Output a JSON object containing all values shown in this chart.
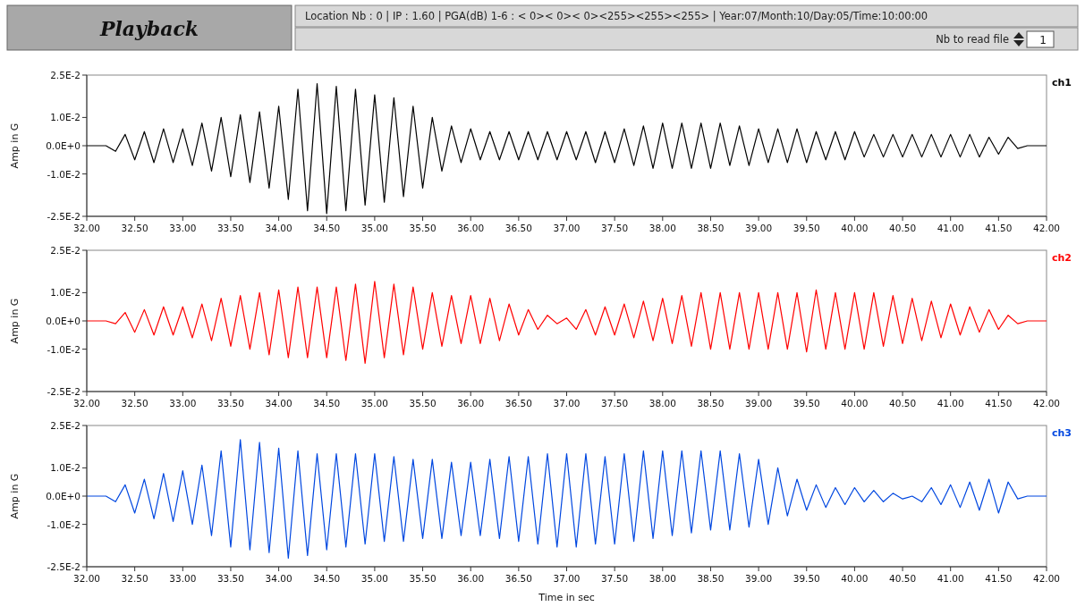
{
  "chart_data": [
    {
      "type": "other",
      "title": "Playback",
      "annotations": [
        "Location Nb : 0  |  IP : 1.60  |  PGA(dB) 1-6 : < 0>< 0>< 0><255><255><255>  |  Year:07/Month:10/Day:05/Time:10:00:00",
        "Nb to read file",
        "1"
      ]
    },
    {
      "type": "line",
      "ylabel": "Amp in G",
      "xlim": [
        32,
        42
      ],
      "ylim": [
        -0.025,
        0.025
      ],
      "xticks": [
        {
          "value": 32,
          "label": "32.00"
        },
        {
          "value": 32.5,
          "label": "32.50"
        },
        {
          "value": 33,
          "label": "33.00"
        },
        {
          "value": 33.5,
          "label": "33.50"
        },
        {
          "value": 34,
          "label": "34.00"
        },
        {
          "value": 34.5,
          "label": "34.50"
        },
        {
          "value": 35,
          "label": "35.00"
        },
        {
          "value": 35.5,
          "label": "35.50"
        },
        {
          "value": 36,
          "label": "36.00"
        },
        {
          "value": 36.5,
          "label": "36.50"
        },
        {
          "value": 37,
          "label": "37.00"
        },
        {
          "value": 37.5,
          "label": "37.50"
        },
        {
          "value": 38,
          "label": "38.00"
        },
        {
          "value": 38.5,
          "label": "38.50"
        },
        {
          "value": 39,
          "label": "39.00"
        },
        {
          "value": 39.5,
          "label": "39.50"
        },
        {
          "value": 40,
          "label": "40.00"
        },
        {
          "value": 40.5,
          "label": "40.50"
        },
        {
          "value": 41,
          "label": "41.00"
        },
        {
          "value": 41.5,
          "label": "41.50"
        },
        {
          "value": 42,
          "label": "42.00"
        }
      ],
      "yticks": [
        {
          "value": 0.025,
          "label": "2.5E-2"
        },
        {
          "value": 0.01,
          "label": "1.0E-2"
        },
        {
          "value": 0,
          "label": "0.0E+0"
        },
        {
          "value": -0.01,
          "label": "-1.0E-2"
        },
        {
          "value": -0.025,
          "label": "-2.5E-2"
        }
      ],
      "x": [
        32,
        32.1,
        32.2,
        32.3,
        32.4,
        32.5,
        32.6,
        32.7,
        32.8,
        32.9,
        33,
        33.1,
        33.2,
        33.3,
        33.4,
        33.5,
        33.6,
        33.7,
        33.8,
        33.9,
        34,
        34.1,
        34.2,
        34.3,
        34.4,
        34.5,
        34.6,
        34.7,
        34.8,
        34.9,
        35,
        35.1,
        35.2,
        35.3,
        35.4,
        35.5,
        35.6,
        35.7,
        35.8,
        35.9,
        36,
        36.1,
        36.2,
        36.3,
        36.4,
        36.5,
        36.6,
        36.7,
        36.8,
        36.9,
        37,
        37.1,
        37.2,
        37.3,
        37.4,
        37.5,
        37.6,
        37.7,
        37.8,
        37.9,
        38,
        38.1,
        38.2,
        38.3,
        38.4,
        38.5,
        38.6,
        38.7,
        38.8,
        38.9,
        39,
        39.1,
        39.2,
        39.3,
        39.4,
        39.5,
        39.6,
        39.7,
        39.8,
        39.9,
        40,
        40.1,
        40.2,
        40.3,
        40.4,
        40.5,
        40.6,
        40.7,
        40.8,
        40.9,
        41,
        41.1,
        41.2,
        41.3,
        41.4,
        41.5,
        41.6,
        41.7,
        41.8,
        41.9,
        42
      ],
      "series": [
        {
          "name": "ch1",
          "color": "#000000",
          "values": [
            0,
            0,
            0,
            -0.002,
            0.004,
            -0.005,
            0.005,
            -0.006,
            0.006,
            -0.006,
            0.006,
            -0.007,
            0.008,
            -0.009,
            0.01,
            -0.011,
            0.011,
            -0.013,
            0.012,
            -0.015,
            0.014,
            -0.019,
            0.02,
            -0.023,
            0.022,
            -0.024,
            0.021,
            -0.023,
            0.02,
            -0.021,
            0.018,
            -0.02,
            0.017,
            -0.018,
            0.014,
            -0.015,
            0.01,
            -0.009,
            0.007,
            -0.006,
            0.006,
            -0.005,
            0.005,
            -0.005,
            0.005,
            -0.005,
            0.005,
            -0.005,
            0.005,
            -0.005,
            0.005,
            -0.005,
            0.005,
            -0.006,
            0.005,
            -0.006,
            0.006,
            -0.007,
            0.007,
            -0.008,
            0.008,
            -0.008,
            0.008,
            -0.008,
            0.008,
            -0.008,
            0.008,
            -0.007,
            0.007,
            -0.007,
            0.006,
            -0.006,
            0.006,
            -0.006,
            0.006,
            -0.006,
            0.005,
            -0.005,
            0.005,
            -0.005,
            0.005,
            -0.004,
            0.004,
            -0.004,
            0.004,
            -0.004,
            0.004,
            -0.004,
            0.004,
            -0.004,
            0.004,
            -0.004,
            0.004,
            -0.004,
            0.003,
            -0.003,
            0.003,
            -0.001,
            0,
            0,
            0
          ]
        }
      ]
    },
    {
      "type": "line",
      "ylabel": "Amp in G",
      "xlim": [
        32,
        42
      ],
      "ylim": [
        -0.025,
        0.025
      ],
      "xticks": [
        {
          "value": 32,
          "label": "32.00"
        },
        {
          "value": 32.5,
          "label": "32.50"
        },
        {
          "value": 33,
          "label": "33.00"
        },
        {
          "value": 33.5,
          "label": "33.50"
        },
        {
          "value": 34,
          "label": "34.00"
        },
        {
          "value": 34.5,
          "label": "34.50"
        },
        {
          "value": 35,
          "label": "35.00"
        },
        {
          "value": 35.5,
          "label": "35.50"
        },
        {
          "value": 36,
          "label": "36.00"
        },
        {
          "value": 36.5,
          "label": "36.50"
        },
        {
          "value": 37,
          "label": "37.00"
        },
        {
          "value": 37.5,
          "label": "37.50"
        },
        {
          "value": 38,
          "label": "38.00"
        },
        {
          "value": 38.5,
          "label": "38.50"
        },
        {
          "value": 39,
          "label": "39.00"
        },
        {
          "value": 39.5,
          "label": "39.50"
        },
        {
          "value": 40,
          "label": "40.00"
        },
        {
          "value": 40.5,
          "label": "40.50"
        },
        {
          "value": 41,
          "label": "41.00"
        },
        {
          "value": 41.5,
          "label": "41.50"
        },
        {
          "value": 42,
          "label": "42.00"
        }
      ],
      "yticks": [
        {
          "value": 0.025,
          "label": "2.5E-2"
        },
        {
          "value": 0.01,
          "label": "1.0E-2"
        },
        {
          "value": 0,
          "label": "0.0E+0"
        },
        {
          "value": -0.01,
          "label": "-1.0E-2"
        },
        {
          "value": -0.025,
          "label": "-2.5E-2"
        }
      ],
      "x": [
        32,
        32.1,
        32.2,
        32.3,
        32.4,
        32.5,
        32.6,
        32.7,
        32.8,
        32.9,
        33,
        33.1,
        33.2,
        33.3,
        33.4,
        33.5,
        33.6,
        33.7,
        33.8,
        33.9,
        34,
        34.1,
        34.2,
        34.3,
        34.4,
        34.5,
        34.6,
        34.7,
        34.8,
        34.9,
        35,
        35.1,
        35.2,
        35.3,
        35.4,
        35.5,
        35.6,
        35.7,
        35.8,
        35.9,
        36,
        36.1,
        36.2,
        36.3,
        36.4,
        36.5,
        36.6,
        36.7,
        36.8,
        36.9,
        37,
        37.1,
        37.2,
        37.3,
        37.4,
        37.5,
        37.6,
        37.7,
        37.8,
        37.9,
        38,
        38.1,
        38.2,
        38.3,
        38.4,
        38.5,
        38.6,
        38.7,
        38.8,
        38.9,
        39,
        39.1,
        39.2,
        39.3,
        39.4,
        39.5,
        39.6,
        39.7,
        39.8,
        39.9,
        40,
        40.1,
        40.2,
        40.3,
        40.4,
        40.5,
        40.6,
        40.7,
        40.8,
        40.9,
        41,
        41.1,
        41.2,
        41.3,
        41.4,
        41.5,
        41.6,
        41.7,
        41.8,
        41.9,
        42
      ],
      "series": [
        {
          "name": "ch2",
          "color": "#ff0000",
          "values": [
            0,
            0,
            0,
            -0.001,
            0.003,
            -0.004,
            0.004,
            -0.005,
            0.005,
            -0.005,
            0.005,
            -0.006,
            0.006,
            -0.007,
            0.008,
            -0.009,
            0.009,
            -0.01,
            0.01,
            -0.012,
            0.011,
            -0.013,
            0.012,
            -0.013,
            0.012,
            -0.013,
            0.012,
            -0.014,
            0.013,
            -0.015,
            0.014,
            -0.013,
            0.013,
            -0.012,
            0.012,
            -0.01,
            0.01,
            -0.009,
            0.009,
            -0.008,
            0.009,
            -0.008,
            0.008,
            -0.007,
            0.006,
            -0.005,
            0.004,
            -0.003,
            0.002,
            -0.001,
            0.001,
            -0.003,
            0.004,
            -0.005,
            0.005,
            -0.005,
            0.006,
            -0.006,
            0.007,
            -0.007,
            0.008,
            -0.008,
            0.009,
            -0.009,
            0.01,
            -0.01,
            0.01,
            -0.01,
            0.01,
            -0.01,
            0.01,
            -0.01,
            0.01,
            -0.01,
            0.01,
            -0.011,
            0.011,
            -0.01,
            0.01,
            -0.01,
            0.01,
            -0.01,
            0.01,
            -0.009,
            0.009,
            -0.008,
            0.008,
            -0.007,
            0.007,
            -0.006,
            0.006,
            -0.005,
            0.005,
            -0.004,
            0.004,
            -0.003,
            0.002,
            -0.001,
            0,
            0,
            0
          ]
        }
      ]
    },
    {
      "type": "line",
      "ylabel": "Amp in G",
      "xlabel": "Time in sec",
      "xlim": [
        32,
        42
      ],
      "ylim": [
        -0.025,
        0.025
      ],
      "xticks": [
        {
          "value": 32,
          "label": "32.00"
        },
        {
          "value": 32.5,
          "label": "32.50"
        },
        {
          "value": 33,
          "label": "33.00"
        },
        {
          "value": 33.5,
          "label": "33.50"
        },
        {
          "value": 34,
          "label": "34.00"
        },
        {
          "value": 34.5,
          "label": "34.50"
        },
        {
          "value": 35,
          "label": "35.00"
        },
        {
          "value": 35.5,
          "label": "35.50"
        },
        {
          "value": 36,
          "label": "36.00"
        },
        {
          "value": 36.5,
          "label": "36.50"
        },
        {
          "value": 37,
          "label": "37.00"
        },
        {
          "value": 37.5,
          "label": "37.50"
        },
        {
          "value": 38,
          "label": "38.00"
        },
        {
          "value": 38.5,
          "label": "38.50"
        },
        {
          "value": 39,
          "label": "39.00"
        },
        {
          "value": 39.5,
          "label": "39.50"
        },
        {
          "value": 40,
          "label": "40.00"
        },
        {
          "value": 40.5,
          "label": "40.50"
        },
        {
          "value": 41,
          "label": "41.00"
        },
        {
          "value": 41.5,
          "label": "41.50"
        },
        {
          "value": 42,
          "label": "42.00"
        }
      ],
      "yticks": [
        {
          "value": 0.025,
          "label": "2.5E-2"
        },
        {
          "value": 0.01,
          "label": "1.0E-2"
        },
        {
          "value": 0,
          "label": "0.0E+0"
        },
        {
          "value": -0.01,
          "label": "-1.0E-2"
        },
        {
          "value": -0.025,
          "label": "-2.5E-2"
        }
      ],
      "x": [
        32,
        32.1,
        32.2,
        32.3,
        32.4,
        32.5,
        32.6,
        32.7,
        32.8,
        32.9,
        33,
        33.1,
        33.2,
        33.3,
        33.4,
        33.5,
        33.6,
        33.7,
        33.8,
        33.9,
        34,
        34.1,
        34.2,
        34.3,
        34.4,
        34.5,
        34.6,
        34.7,
        34.8,
        34.9,
        35,
        35.1,
        35.2,
        35.3,
        35.4,
        35.5,
        35.6,
        35.7,
        35.8,
        35.9,
        36,
        36.1,
        36.2,
        36.3,
        36.4,
        36.5,
        36.6,
        36.7,
        36.8,
        36.9,
        37,
        37.1,
        37.2,
        37.3,
        37.4,
        37.5,
        37.6,
        37.7,
        37.8,
        37.9,
        38,
        38.1,
        38.2,
        38.3,
        38.4,
        38.5,
        38.6,
        38.7,
        38.8,
        38.9,
        39,
        39.1,
        39.2,
        39.3,
        39.4,
        39.5,
        39.6,
        39.7,
        39.8,
        39.9,
        40,
        40.1,
        40.2,
        40.3,
        40.4,
        40.5,
        40.6,
        40.7,
        40.8,
        40.9,
        41,
        41.1,
        41.2,
        41.3,
        41.4,
        41.5,
        41.6,
        41.7,
        41.8,
        41.9,
        42
      ],
      "series": [
        {
          "name": "ch3",
          "color": "#0047e0",
          "values": [
            0,
            0,
            0,
            -0.002,
            0.004,
            -0.006,
            0.006,
            -0.008,
            0.008,
            -0.009,
            0.009,
            -0.01,
            0.011,
            -0.014,
            0.016,
            -0.018,
            0.02,
            -0.019,
            0.019,
            -0.02,
            0.017,
            -0.022,
            0.016,
            -0.021,
            0.015,
            -0.019,
            0.015,
            -0.018,
            0.015,
            -0.017,
            0.015,
            -0.016,
            0.014,
            -0.016,
            0.013,
            -0.015,
            0.013,
            -0.015,
            0.012,
            -0.014,
            0.012,
            -0.014,
            0.013,
            -0.015,
            0.014,
            -0.016,
            0.014,
            -0.017,
            0.015,
            -0.018,
            0.015,
            -0.018,
            0.015,
            -0.017,
            0.014,
            -0.017,
            0.015,
            -0.016,
            0.016,
            -0.015,
            0.016,
            -0.014,
            0.016,
            -0.013,
            0.016,
            -0.012,
            0.016,
            -0.012,
            0.015,
            -0.011,
            0.013,
            -0.01,
            0.01,
            -0.007,
            0.006,
            -0.005,
            0.004,
            -0.004,
            0.003,
            -0.003,
            0.003,
            -0.002,
            0.002,
            -0.002,
            0.001,
            -0.001,
            0,
            -0.002,
            0.003,
            -0.003,
            0.004,
            -0.004,
            0.005,
            -0.005,
            0.006,
            -0.006,
            0.005,
            -0.001,
            0,
            0,
            0
          ]
        }
      ]
    }
  ]
}
